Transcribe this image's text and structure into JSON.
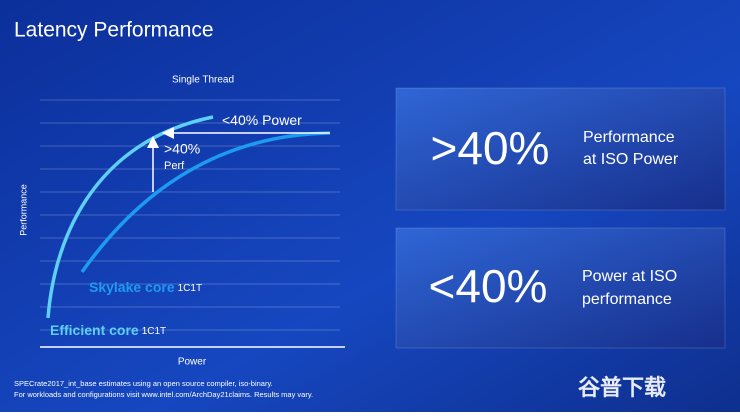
{
  "header": {
    "title": "Latency Performance"
  },
  "chart": {
    "title": "Single Thread",
    "y_label": "Performance",
    "x_label": "Power",
    "annotations": {
      "power": "<40% Power",
      "perf_value": ">40%",
      "perf_word": "Perf"
    },
    "curves": [
      {
        "name": "Skylake core",
        "config": "1C1T"
      },
      {
        "name": "Efficient core",
        "config": "1C1T"
      }
    ]
  },
  "boxes": [
    {
      "value": ">40%",
      "lines": [
        "Performance",
        "at ISO Power"
      ]
    },
    {
      "value": "<40%",
      "lines": [
        "Power at ISO",
        "performance"
      ]
    }
  ],
  "footnotes": [
    "SPECrate2017_int_base estimates using an open source compiler, iso-binary.",
    "For workloads and configurations visit www.intel.com/ArchDay21claims. Results may vary."
  ],
  "watermark": "谷普下载"
}
